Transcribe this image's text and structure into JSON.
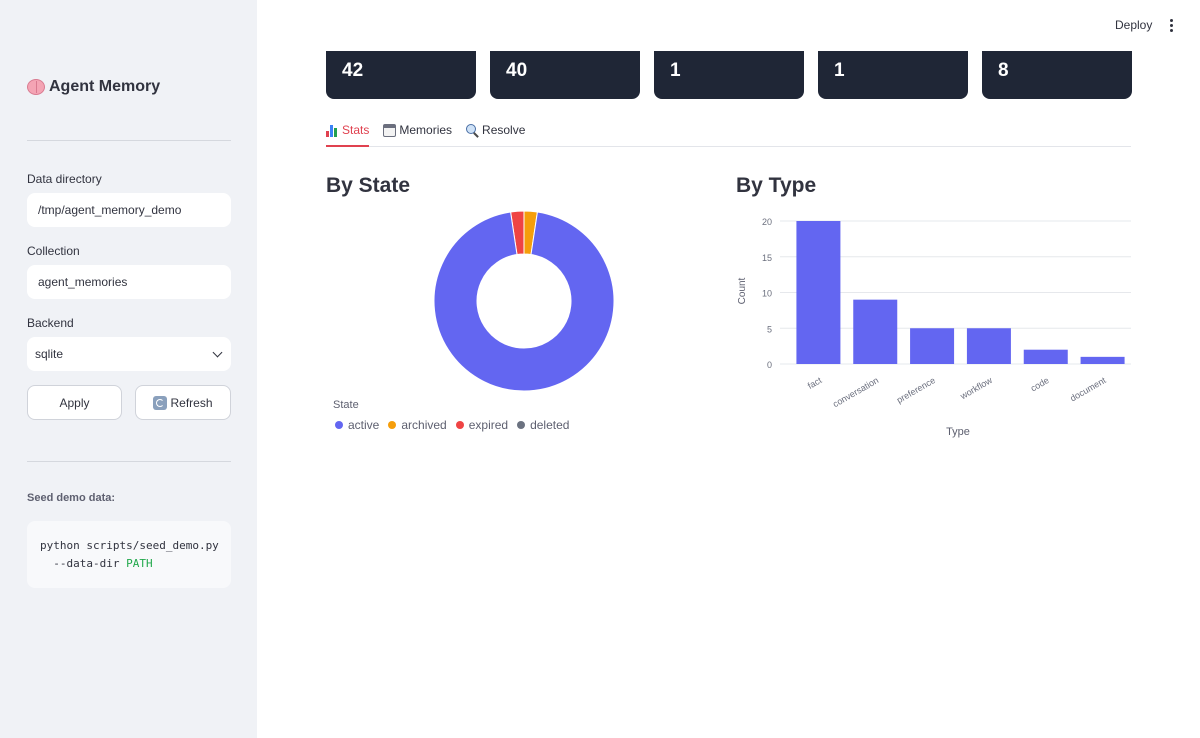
{
  "sidebar": {
    "title": "Agent Memory",
    "data_directory_label": "Data directory",
    "data_directory_value": "/tmp/agent_memory_demo",
    "collection_label": "Collection",
    "collection_value": "agent_memories",
    "backend_label": "Backend",
    "backend_value": "sqlite",
    "apply_label": "Apply",
    "refresh_label": "Refresh",
    "seed_label": "Seed demo data:",
    "code_line1": "python scripts/seed_demo.py",
    "code_line2_prefix": "  --data-dir ",
    "code_line2_arg": "PATH"
  },
  "header": {
    "deploy_label": "Deploy"
  },
  "metrics": [
    "42",
    "40",
    "1",
    "1",
    "8"
  ],
  "tabs": [
    {
      "label": "Stats",
      "icon": "bar-chart-icon",
      "active": true
    },
    {
      "label": "Memories",
      "icon": "calendar-icon",
      "active": false
    },
    {
      "label": "Resolve",
      "icon": "search-icon",
      "active": false
    }
  ],
  "sections": {
    "by_state": "By State",
    "by_type": "By Type"
  },
  "colors": {
    "active": "#6366f1",
    "archived": "#f59e0b",
    "expired": "#ef4444",
    "deleted": "#6b7280",
    "accent": "#e0414f"
  },
  "chart_data": [
    {
      "type": "pie",
      "title": "By State",
      "legend_title": "State",
      "legend_position": "bottom-left",
      "categories": [
        "active",
        "archived",
        "expired",
        "deleted"
      ],
      "values": [
        40,
        1,
        1,
        0
      ],
      "donut": true
    },
    {
      "type": "bar",
      "title": "By Type",
      "xlabel": "Type",
      "ylabel": "Count",
      "categories": [
        "fact",
        "conversation",
        "preference",
        "workflow",
        "code",
        "document"
      ],
      "values": [
        20,
        9,
        5,
        5,
        2,
        1
      ],
      "y_ticks": [
        0,
        5,
        10,
        15,
        20
      ],
      "ylim": [
        0,
        20
      ],
      "grid": true,
      "color": "#6366f1"
    }
  ]
}
